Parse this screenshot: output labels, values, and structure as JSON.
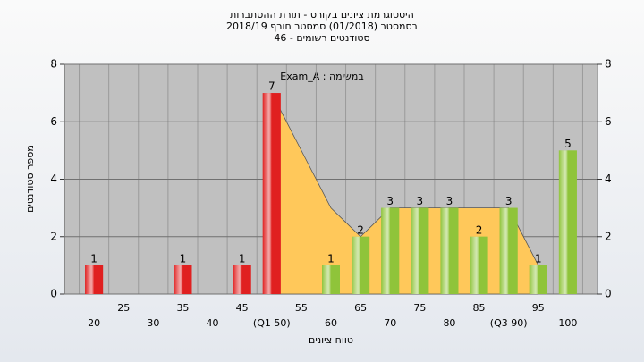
{
  "chart_data": {
    "type": "bar",
    "title": [
      "היסטוגרמת ציונים בקורס - תורת ההסתברות",
      "בסמסטר (01/2018)  סמסטר חורף 2018/19",
      "סטודנטים רשומים - 46"
    ],
    "annotation": "Exam_A : במשימה",
    "xlabel": "טווח ציונים",
    "ylabel": "מספר סטודנטים",
    "categories": [
      "20",
      "25",
      "30",
      "35",
      "40",
      "45",
      "(Q1 50)",
      "55",
      "60",
      "65",
      "70",
      "75",
      "80",
      "85",
      "(Q3 90)",
      "95",
      "100"
    ],
    "values": [
      1,
      0,
      0,
      1,
      0,
      1,
      7,
      0,
      1,
      2,
      3,
      3,
      3,
      2,
      3,
      1,
      5
    ],
    "colors": [
      "#e02020",
      "#e02020",
      "#e02020",
      "#e02020",
      "#e02020",
      "#e02020",
      "#e02020",
      "#8fc43a",
      "#8fc43a",
      "#8fc43a",
      "#8fc43a",
      "#8fc43a",
      "#8fc43a",
      "#8fc43a",
      "#8fc43a",
      "#8fc43a",
      "#8fc43a"
    ],
    "area_values": [
      null,
      null,
      null,
      null,
      null,
      null,
      7,
      5,
      3,
      2,
      3,
      3,
      3,
      3,
      3,
      1,
      null
    ],
    "area_color": "#ffc85a",
    "ylim": [
      0,
      8
    ],
    "yticks": [
      0,
      2,
      4,
      6,
      8
    ],
    "y2lim": [
      0,
      8
    ],
    "y2ticks": [
      0,
      2,
      4,
      6,
      8
    ],
    "grid": true
  }
}
